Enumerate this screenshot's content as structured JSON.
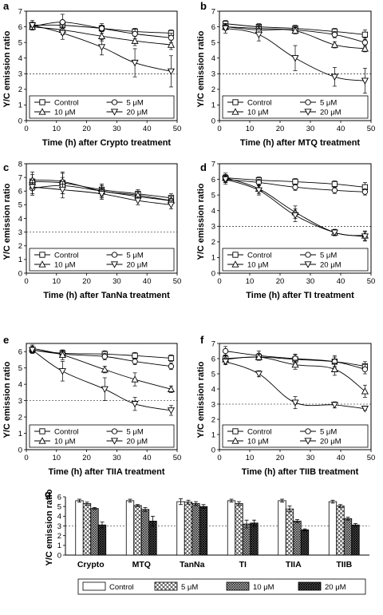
{
  "chart_data": [
    {
      "panel": "a",
      "type": "line",
      "xlabel": "Time (h) after Crypto treatment",
      "ylabel": "Y/C emission ratio",
      "xlim": [
        0,
        50
      ],
      "ylim": [
        0,
        7
      ],
      "xticks": [
        0,
        10,
        20,
        30,
        40,
        50
      ],
      "yticks": [
        0,
        1,
        2,
        3,
        4,
        5,
        6,
        7
      ],
      "reference_line": 3,
      "x": [
        2,
        12,
        25,
        36,
        48
      ],
      "series": [
        {
          "name": "Control",
          "marker": "square",
          "values": [
            6.1,
            6.1,
            5.9,
            5.7,
            5.6
          ],
          "errors": [
            0.2,
            0.2,
            0.2,
            0.2,
            0.2
          ]
        },
        {
          "name": "5 μM",
          "marker": "circle",
          "values": [
            6.0,
            6.3,
            5.9,
            5.55,
            5.3
          ],
          "errors": [
            0.2,
            0.5,
            0.3,
            0.3,
            0.3
          ]
        },
        {
          "name": "10 μM",
          "marker": "triangle-up",
          "values": [
            6.0,
            5.8,
            5.4,
            5.1,
            4.85
          ],
          "errors": [
            0.2,
            0.3,
            0.3,
            0.3,
            0.3
          ]
        },
        {
          "name": "20 μM",
          "marker": "triangle-down",
          "values": [
            6.1,
            5.6,
            4.7,
            3.7,
            3.15
          ],
          "errors": [
            0.3,
            0.4,
            0.5,
            0.9,
            1.0
          ]
        }
      ],
      "legend": {
        "placement": "bottom"
      }
    },
    {
      "panel": "b",
      "type": "line",
      "xlabel": "Time (h) after MTQ treatment",
      "ylabel": "Y/C emission ratio",
      "xlim": [
        0,
        50
      ],
      "ylim": [
        0,
        7
      ],
      "xticks": [
        0,
        10,
        20,
        30,
        40,
        50
      ],
      "yticks": [
        0,
        1,
        2,
        3,
        4,
        5,
        6,
        7
      ],
      "reference_line": 3,
      "x": [
        2,
        13,
        25,
        38,
        48
      ],
      "series": [
        {
          "name": "Control",
          "marker": "square",
          "values": [
            6.2,
            6.0,
            5.9,
            5.7,
            5.5
          ],
          "errors": [
            0.2,
            0.2,
            0.2,
            0.2,
            0.3
          ]
        },
        {
          "name": "5 μM",
          "marker": "circle",
          "values": [
            6.0,
            5.9,
            5.8,
            5.5,
            5.0
          ],
          "errors": [
            0.2,
            0.2,
            0.2,
            0.2,
            0.3
          ]
        },
        {
          "name": "10 μM",
          "marker": "triangle-up",
          "values": [
            6.0,
            5.8,
            5.75,
            4.85,
            4.6
          ],
          "errors": [
            0.2,
            0.2,
            0.2,
            0.2,
            0.2
          ]
        },
        {
          "name": "20 μM",
          "marker": "triangle-down",
          "values": [
            5.9,
            5.5,
            4.0,
            2.8,
            2.55
          ],
          "errors": [
            0.3,
            0.4,
            0.8,
            0.6,
            0.8
          ]
        }
      ],
      "legend": {
        "placement": "bottom"
      }
    },
    {
      "panel": "c",
      "type": "line",
      "xlabel": "Time (h) after TanNa treatment",
      "ylabel": "Y/C emission ratio",
      "xlim": [
        0,
        50
      ],
      "ylim": [
        0,
        8
      ],
      "xticks": [
        0,
        10,
        20,
        30,
        40,
        50
      ],
      "yticks": [
        0,
        1,
        2,
        3,
        4,
        5,
        6,
        7,
        8
      ],
      "reference_line": 3,
      "x": [
        2,
        12,
        25,
        37,
        48
      ],
      "series": [
        {
          "name": "Control",
          "marker": "square",
          "values": [
            6.7,
            6.6,
            6.1,
            5.8,
            5.5
          ],
          "errors": [
            0.5,
            0.8,
            0.4,
            0.3,
            0.3
          ]
        },
        {
          "name": "5 μM",
          "marker": "circle",
          "values": [
            6.2,
            6.4,
            6.0,
            5.6,
            5.3
          ],
          "errors": [
            0.5,
            0.6,
            0.4,
            0.3,
            0.3
          ]
        },
        {
          "name": "10 μM",
          "marker": "triangle-up",
          "values": [
            6.8,
            6.7,
            6.0,
            5.7,
            5.3
          ],
          "errors": [
            0.6,
            0.6,
            0.5,
            0.3,
            0.3
          ]
        },
        {
          "name": "20 μM",
          "marker": "triangle-down",
          "values": [
            6.3,
            6.1,
            5.8,
            5.3,
            5.0
          ],
          "errors": [
            0.5,
            0.6,
            0.4,
            0.3,
            0.3
          ]
        }
      ],
      "legend": {
        "placement": "bottom"
      }
    },
    {
      "panel": "d",
      "type": "line",
      "xlabel": "Time (h) after TI treatment",
      "ylabel": "Y/C emission ratio",
      "xlim": [
        0,
        50
      ],
      "ylim": [
        0,
        7
      ],
      "xticks": [
        0,
        10,
        20,
        30,
        40,
        50
      ],
      "yticks": [
        0,
        1,
        2,
        3,
        4,
        5,
        6,
        7
      ],
      "reference_line": 3,
      "x": [
        2,
        13,
        25,
        38,
        48
      ],
      "series": [
        {
          "name": "Control",
          "marker": "square",
          "values": [
            6.1,
            5.95,
            5.85,
            5.7,
            5.5
          ],
          "errors": [
            0.2,
            0.2,
            0.2,
            0.2,
            0.3
          ]
        },
        {
          "name": "5 μM",
          "marker": "circle",
          "values": [
            6.0,
            5.8,
            5.5,
            5.3,
            5.2
          ],
          "errors": [
            0.2,
            0.2,
            0.2,
            0.2,
            0.2
          ]
        },
        {
          "name": "10 μM",
          "marker": "triangle-up",
          "values": [
            6.1,
            5.4,
            3.9,
            2.6,
            2.4
          ],
          "errors": [
            0.3,
            0.3,
            0.4,
            0.2,
            0.3
          ]
        },
        {
          "name": "20 μM",
          "marker": "triangle-down",
          "values": [
            6.0,
            5.3,
            3.7,
            2.6,
            2.35
          ],
          "errors": [
            0.3,
            0.3,
            0.4,
            0.2,
            0.3
          ]
        }
      ],
      "legend": {
        "placement": "bottom"
      }
    },
    {
      "panel": "e",
      "type": "line",
      "xlabel": "Time (h) after TIIA treatment",
      "ylabel": "Y/C emission ratio",
      "xlim": [
        0,
        50
      ],
      "ylim": [
        0,
        6.5
      ],
      "xticks": [
        0,
        10,
        20,
        30,
        40,
        50
      ],
      "yticks": [
        0,
        1,
        2,
        3,
        4,
        5,
        6
      ],
      "reference_line": 3,
      "x": [
        2,
        12,
        26,
        36,
        48
      ],
      "series": [
        {
          "name": "Control",
          "marker": "square",
          "values": [
            6.1,
            5.9,
            5.85,
            5.75,
            5.6
          ],
          "errors": [
            0.2,
            0.2,
            0.2,
            0.2,
            0.2
          ]
        },
        {
          "name": "5 μM",
          "marker": "circle",
          "values": [
            6.1,
            5.85,
            5.7,
            5.4,
            5.1
          ],
          "errors": [
            0.2,
            0.2,
            0.2,
            0.2,
            0.2
          ]
        },
        {
          "name": "10 μM",
          "marker": "triangle-up",
          "values": [
            6.2,
            5.8,
            4.9,
            4.3,
            3.7
          ],
          "errors": [
            0.2,
            0.3,
            0.2,
            0.4,
            0.2
          ]
        },
        {
          "name": "20 μM",
          "marker": "triangle-down",
          "values": [
            6.1,
            4.8,
            3.7,
            2.8,
            2.4
          ],
          "errors": [
            0.2,
            0.6,
            0.7,
            0.4,
            0.3
          ]
        }
      ],
      "legend": {
        "placement": "bottom"
      }
    },
    {
      "panel": "f",
      "type": "line",
      "xlabel": "Time (h) after TIIB treatment",
      "ylabel": "Y/C emission ratio",
      "xlim": [
        0,
        50
      ],
      "ylim": [
        0,
        7
      ],
      "xticks": [
        0,
        10,
        20,
        30,
        40,
        50
      ],
      "yticks": [
        0,
        1,
        2,
        3,
        4,
        5,
        6,
        7
      ],
      "reference_line": 3,
      "x": [
        2,
        13,
        25,
        38,
        48
      ],
      "series": [
        {
          "name": "Control",
          "marker": "square",
          "values": [
            6.0,
            6.1,
            5.95,
            5.8,
            5.5
          ],
          "errors": [
            0.2,
            0.2,
            0.3,
            0.3,
            0.3
          ]
        },
        {
          "name": "5 μM",
          "marker": "circle",
          "values": [
            6.5,
            6.2,
            6.0,
            5.8,
            5.3
          ],
          "errors": [
            0.3,
            0.3,
            0.3,
            0.4,
            0.3
          ]
        },
        {
          "name": "10 μM",
          "marker": "triangle-up",
          "values": [
            5.95,
            6.1,
            5.6,
            5.3,
            3.85
          ],
          "errors": [
            0.3,
            0.2,
            0.3,
            0.4,
            0.4
          ]
        },
        {
          "name": "20 μM",
          "marker": "triangle-down",
          "values": [
            5.8,
            5.0,
            3.1,
            2.95,
            2.7
          ],
          "errors": [
            0.2,
            0.2,
            0.4,
            0.2,
            0.1
          ]
        }
      ],
      "legend": {
        "placement": "bottom"
      }
    },
    {
      "panel": "g",
      "type": "bar",
      "ylabel": "Y/C emission ratio",
      "ylim": [
        0,
        6
      ],
      "yticks": [
        0,
        1,
        2,
        3,
        4,
        5,
        6
      ],
      "reference_line": 3,
      "categories": [
        "Crypto",
        "MTQ",
        "TanNa",
        "TI",
        "TIIA",
        "TIIB"
      ],
      "series": [
        {
          "name": "Control",
          "pattern": "white",
          "values": [
            5.6,
            5.6,
            5.5,
            5.6,
            5.6,
            5.5
          ],
          "errors": [
            0.15,
            0.15,
            0.3,
            0.15,
            0.15,
            0.15
          ]
        },
        {
          "name": "5 μM",
          "pattern": "cross-hatch",
          "values": [
            5.3,
            5.1,
            5.45,
            5.3,
            4.75,
            5.05
          ],
          "errors": [
            0.15,
            0.1,
            0.2,
            0.2,
            0.3,
            0.15
          ]
        },
        {
          "name": "10 μM",
          "pattern": "dense-hatch",
          "values": [
            4.8,
            4.7,
            5.3,
            3.2,
            3.5,
            3.75
          ],
          "errors": [
            0.1,
            0.2,
            0.2,
            0.4,
            0.15,
            0.15
          ]
        },
        {
          "name": "20 μM",
          "pattern": "dark-hatch",
          "values": [
            3.1,
            3.5,
            5.0,
            3.3,
            2.6,
            3.1
          ],
          "errors": [
            0.3,
            0.5,
            0.2,
            0.3,
            0.1,
            0.15
          ]
        }
      ],
      "legend": {
        "placement": "bottom"
      }
    }
  ]
}
